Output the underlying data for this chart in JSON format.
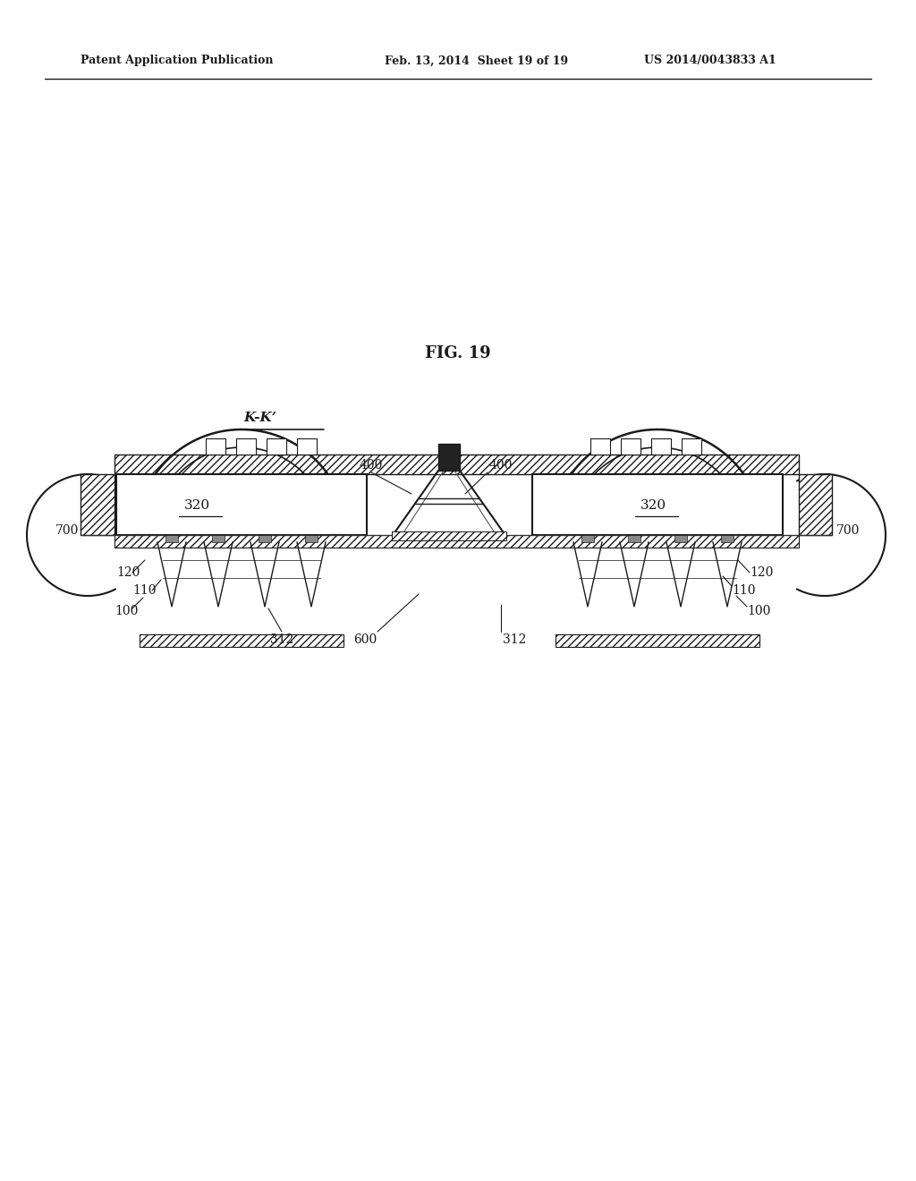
{
  "bg_color": "#ffffff",
  "line_color": "#1a1a1a",
  "header_left": "Patent Application Publication",
  "header_mid": "Feb. 13, 2014  Sheet 19 of 19",
  "header_right": "US 2014/0043833 A1",
  "fig_label": "FIG. 19",
  "section_label": "K-K’"
}
